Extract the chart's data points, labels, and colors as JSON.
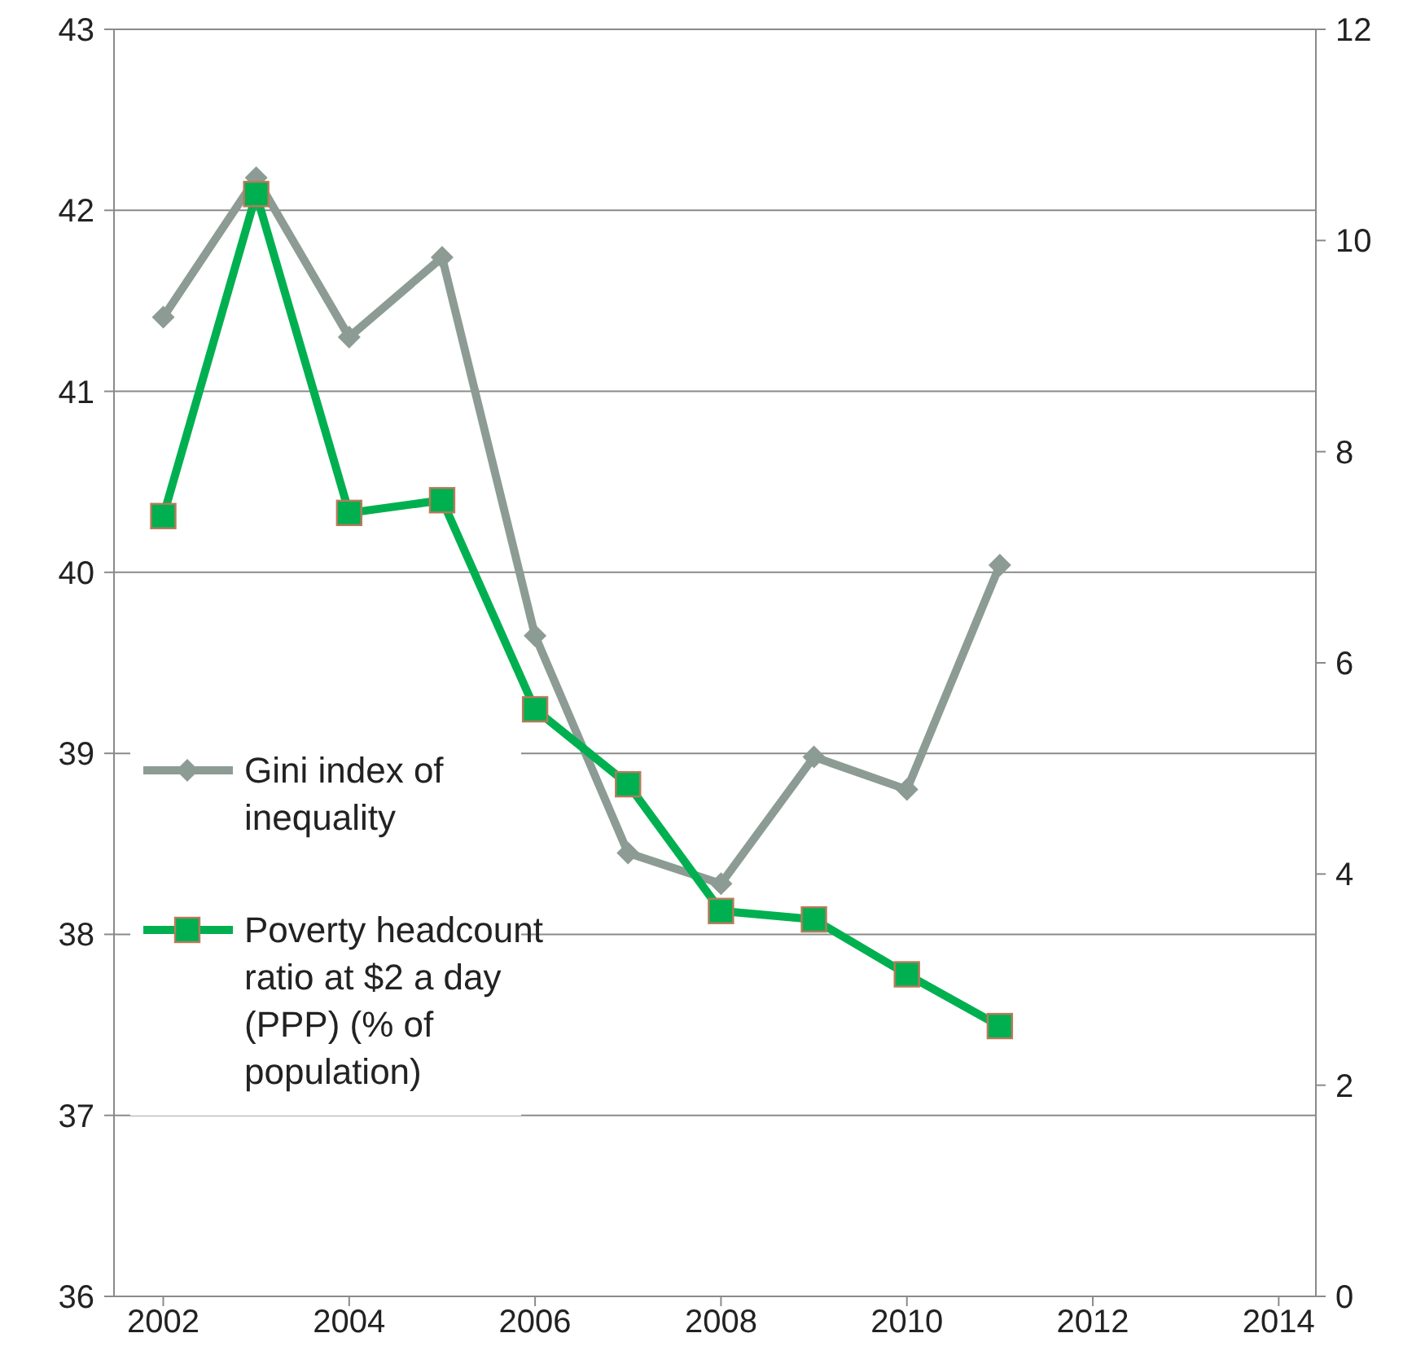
{
  "chart_data": {
    "type": "line",
    "x": [
      2002,
      2003,
      2004,
      2005,
      2006,
      2007,
      2008,
      2009,
      2010,
      2011
    ],
    "xlim": [
      2001.47,
      2014.4
    ],
    "xticks": [
      2002,
      2004,
      2006,
      2008,
      2010,
      2012,
      2014
    ],
    "ylim": [
      36,
      43
    ],
    "yticks": [
      36,
      37,
      38,
      39,
      40,
      41,
      42,
      43
    ],
    "y2lim": [
      0,
      12
    ],
    "y2ticks": [
      0,
      2,
      4,
      6,
      8,
      10,
      12
    ],
    "grid": "y",
    "legend": "left",
    "series": [
      {
        "name": "Gini index of inequality",
        "color": "#8c9c94",
        "marker": "diamond",
        "values": [
          41.41,
          42.18,
          41.3,
          41.74,
          39.65,
          38.45,
          38.28,
          38.98,
          38.8,
          40.04
        ]
      },
      {
        "name": "Poverty headcount ratio at $2 a day (PPP) (% of population)",
        "color": "#00b050",
        "marker": "square",
        "axis": "y2",
        "values": [
          7.39,
          10.44,
          7.42,
          7.54,
          5.56,
          4.85,
          3.65,
          3.57,
          3.05,
          2.56
        ]
      }
    ]
  }
}
